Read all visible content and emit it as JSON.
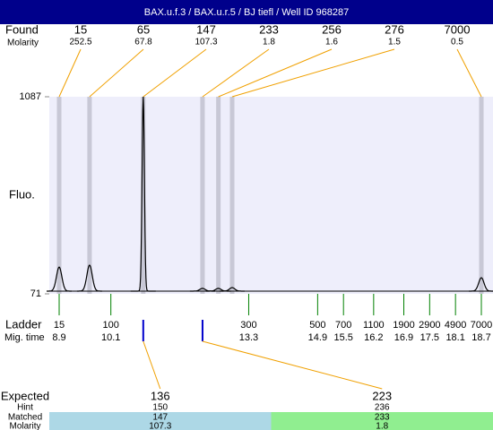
{
  "chart_data": {
    "type": "electropherogram",
    "title": "BAX.u.f.3 / BAX.u.r.5 / BJ tiefl / Well ID 968287",
    "found": {
      "label": "Found",
      "molarity_label": "Molarity",
      "sizes": [
        15,
        65,
        147,
        233,
        256,
        276,
        7000
      ],
      "molarity": [
        252.5,
        67.8,
        107.3,
        1.8,
        1.6,
        1.5,
        0.5
      ],
      "heights": [
        209,
        219,
        1087,
        99,
        99,
        103,
        154
      ]
    },
    "baseline": 85,
    "y_label": "Fluo.",
    "ylim": [
      71,
      1087
    ],
    "yticks": [
      71,
      1087
    ],
    "ladder": {
      "label": "Ladder",
      "time_label": "Mig. time",
      "sizes": [
        15,
        100,
        300,
        500,
        700,
        1100,
        1900,
        2900,
        4900,
        7000
      ],
      "times": [
        8.9,
        10.1,
        13.3,
        14.9,
        15.5,
        16.2,
        16.9,
        17.5,
        18.1,
        18.7
      ]
    },
    "expected": {
      "label": "Expected",
      "hint_label": "Hint",
      "matched_label": "Matched",
      "molarity_label": "Molarity",
      "sizes": [
        136,
        223
      ],
      "hint": [
        150,
        236
      ],
      "matched": [
        147,
        233
      ],
      "molarity": [
        107.3,
        1.8
      ],
      "colors": [
        "#add8e6",
        "#90ee90"
      ]
    },
    "colors": {
      "header": "#00008b",
      "plot": "#eeeefb",
      "band": "#c8c8d6",
      "connector": "#f0a000",
      "ladder_tick": "#008000",
      "marker": "#0000cc",
      "trace": "#000000"
    }
  }
}
